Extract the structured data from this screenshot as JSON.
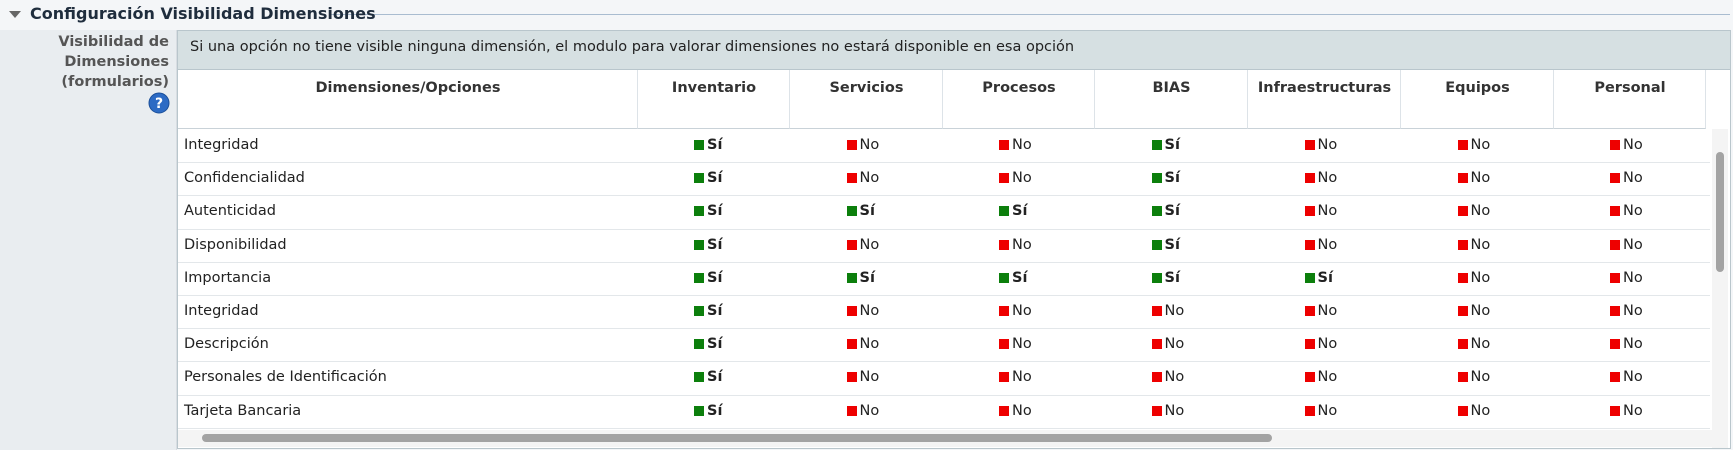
{
  "section": {
    "title": "Configuración Visibilidad Dimensiones"
  },
  "field": {
    "label_lines": [
      "Visibilidad de",
      "Dimensiones",
      "(formularios)"
    ]
  },
  "info": "Si una opción no tiene visible ninguna dimensión, el modulo para valorar dimensiones no estará disponible en esa opción",
  "table": {
    "headers": [
      "Dimensiones/Opciones",
      "Inventario",
      "Servicios",
      "Procesos",
      "BIAS",
      "Infraestructuras",
      "Equipos",
      "Personal"
    ],
    "cell_styles": {
      "Sí": {
        "color": "#0c7f0c",
        "bold": true
      },
      "No": {
        "color": "#ee0000",
        "bold": false
      }
    },
    "rows": [
      [
        "Integridad",
        "Sí",
        "No",
        "No",
        "Sí",
        "No",
        "No",
        "No"
      ],
      [
        "Confidencialidad",
        "Sí",
        "No",
        "No",
        "Sí",
        "No",
        "No",
        "No"
      ],
      [
        "Autenticidad",
        "Sí",
        "Sí",
        "Sí",
        "Sí",
        "No",
        "No",
        "No"
      ],
      [
        "Disponibilidad",
        "Sí",
        "No",
        "No",
        "Sí",
        "No",
        "No",
        "No"
      ],
      [
        "Importancia",
        "Sí",
        "Sí",
        "Sí",
        "Sí",
        "Sí",
        "No",
        "No"
      ],
      [
        "Integridad",
        "Sí",
        "No",
        "No",
        "No",
        "No",
        "No",
        "No"
      ],
      [
        "Descripción",
        "Sí",
        "No",
        "No",
        "No",
        "No",
        "No",
        "No"
      ],
      [
        "Personales de Identificación",
        "Sí",
        "No",
        "No",
        "No",
        "No",
        "No",
        "No"
      ],
      [
        "Tarjeta Bancaria",
        "Sí",
        "No",
        "No",
        "No",
        "No",
        "No",
        "No"
      ]
    ]
  }
}
